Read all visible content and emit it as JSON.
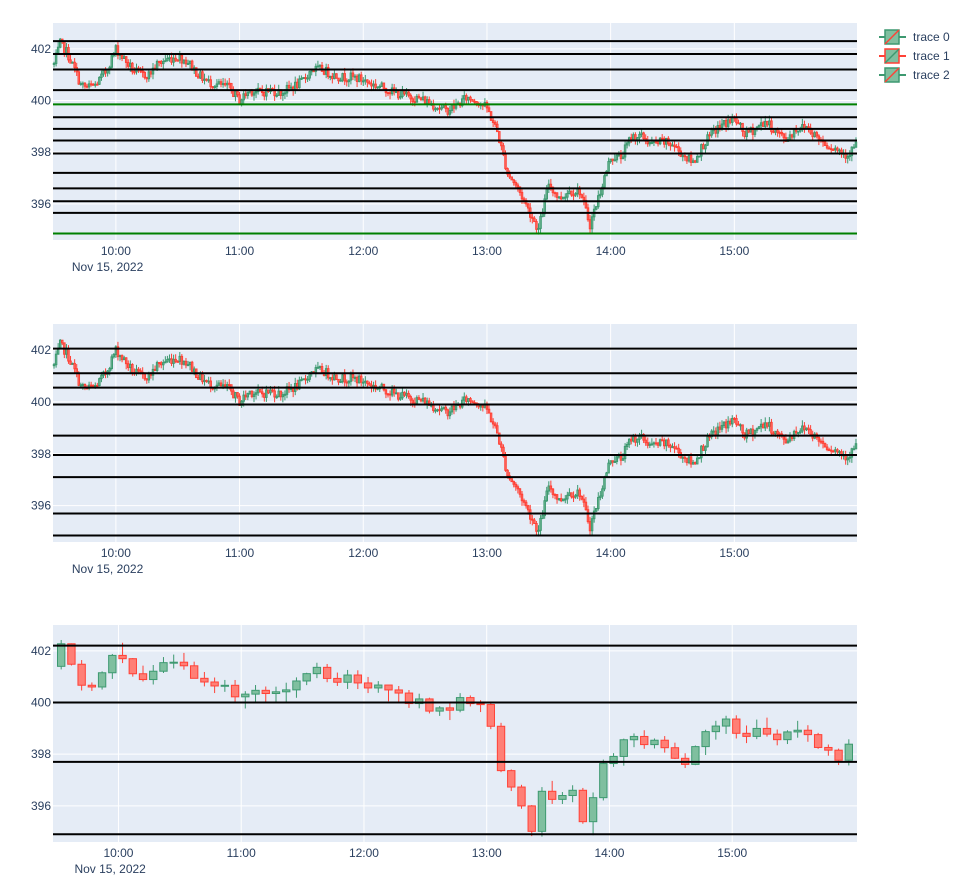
{
  "colors": {
    "plot_bg": "#e5ecf6",
    "grid": "#ffffff",
    "increasing": "#3d9970",
    "increasing_fill": "#7fbf9f",
    "decreasing": "#ff4136",
    "decreasing_fill": "#ff7f76",
    "hline": "#000000",
    "hline_green": "#008000",
    "axis_text": "#2a3f5f"
  },
  "legend": {
    "position": "top-right",
    "items": [
      "trace 0",
      "trace 1",
      "trace 2"
    ],
    "marker_colors": [
      {
        "inc": "#3d9970",
        "dec": "#ff4136"
      },
      {
        "inc": "#ff4136",
        "dec": "#3d9970"
      },
      {
        "inc": "#3d9970",
        "dec": "#ff4136"
      }
    ]
  },
  "chart_data": [
    {
      "type": "candlestick",
      "name": "trace 0",
      "x_range": [
        "09:30",
        "15:59"
      ],
      "ylim": [
        394.6,
        403.0
      ],
      "x_ticks": [
        "10:00",
        "11:00",
        "12:00",
        "13:00",
        "14:00",
        "15:00"
      ],
      "x_tick_sublabel": "Nov 15, 2022",
      "y_ticks": [
        396,
        398,
        400,
        402
      ],
      "candle_interval_minutes": 1,
      "price_path": {
        "times": [
          "09:30",
          "09:33",
          "09:36",
          "09:40",
          "09:43",
          "09:46",
          "09:50",
          "09:55",
          "10:00",
          "10:04",
          "10:08",
          "10:12",
          "10:16",
          "10:20",
          "10:25",
          "10:30",
          "10:35",
          "10:40",
          "10:45",
          "10:50",
          "10:55",
          "11:00",
          "11:05",
          "11:10",
          "11:15",
          "11:20",
          "11:25",
          "11:30",
          "11:35",
          "11:40",
          "11:45",
          "11:50",
          "11:55",
          "12:00",
          "12:05",
          "12:10",
          "12:15",
          "12:20",
          "12:25",
          "12:30",
          "12:35",
          "12:40",
          "12:45",
          "12:50",
          "12:55",
          "13:00",
          "13:05",
          "13:10",
          "13:15",
          "13:20",
          "13:25",
          "13:30",
          "13:35",
          "13:40",
          "13:45",
          "13:50",
          "13:55",
          "14:00",
          "14:05",
          "14:10",
          "14:15",
          "14:20",
          "14:25",
          "14:30",
          "14:35",
          "14:40",
          "14:45",
          "14:50",
          "14:55",
          "15:00",
          "15:05",
          "15:10",
          "15:15",
          "15:20",
          "15:25",
          "15:30",
          "15:35",
          "15:40",
          "15:45",
          "15:50",
          "15:55",
          "15:59"
        ],
        "prices": [
          401.4,
          402.2,
          401.9,
          401.2,
          400.6,
          400.5,
          400.6,
          401.1,
          402.0,
          401.6,
          401.2,
          401.0,
          401.0,
          401.4,
          401.6,
          401.7,
          401.5,
          401.0,
          400.7,
          400.6,
          400.5,
          400.0,
          400.4,
          400.3,
          400.4,
          400.3,
          400.5,
          400.7,
          401.2,
          401.2,
          401.0,
          400.9,
          400.9,
          400.8,
          400.6,
          400.5,
          400.3,
          400.2,
          400.1,
          400.0,
          399.8,
          399.6,
          399.8,
          400.1,
          400.0,
          399.7,
          398.8,
          397.2,
          396.6,
          395.8,
          395.0,
          396.8,
          396.2,
          396.5,
          396.5,
          395.2,
          396.5,
          397.8,
          397.8,
          398.6,
          398.6,
          398.3,
          398.4,
          398.3,
          397.9,
          397.6,
          398.3,
          398.8,
          399.1,
          399.3,
          398.7,
          398.9,
          399.2,
          398.8,
          398.5,
          398.9,
          399.0,
          398.6,
          398.3,
          398.1,
          397.9,
          398.3
        ]
      },
      "hlines": [
        {
          "y": 402.3,
          "color": "black"
        },
        {
          "y": 401.8,
          "color": "black"
        },
        {
          "y": 401.2,
          "color": "black"
        },
        {
          "y": 400.4,
          "color": "black"
        },
        {
          "y": 399.85,
          "color": "green"
        },
        {
          "y": 399.35,
          "color": "black"
        },
        {
          "y": 398.9,
          "color": "black"
        },
        {
          "y": 398.45,
          "color": "black"
        },
        {
          "y": 397.95,
          "color": "black"
        },
        {
          "y": 397.2,
          "color": "black"
        },
        {
          "y": 396.6,
          "color": "black"
        },
        {
          "y": 396.1,
          "color": "black"
        },
        {
          "y": 395.65,
          "color": "black"
        },
        {
          "y": 394.85,
          "color": "green"
        }
      ],
      "grid": true
    },
    {
      "type": "candlestick",
      "name": "trace 1",
      "x_range": [
        "09:30",
        "15:59"
      ],
      "ylim": [
        394.6,
        403.0
      ],
      "x_ticks": [
        "10:00",
        "11:00",
        "12:00",
        "13:00",
        "14:00",
        "15:00"
      ],
      "x_tick_sublabel": "Nov 15, 2022",
      "y_ticks": [
        396,
        398,
        400,
        402
      ],
      "candle_interval_minutes": 1,
      "hlines": [
        {
          "y": 402.05,
          "color": "black"
        },
        {
          "y": 401.1,
          "color": "black"
        },
        {
          "y": 400.55,
          "color": "black"
        },
        {
          "y": 399.9,
          "color": "black"
        },
        {
          "y": 398.7,
          "color": "black"
        },
        {
          "y": 397.95,
          "color": "black"
        },
        {
          "y": 397.1,
          "color": "black"
        },
        {
          "y": 395.7,
          "color": "black"
        },
        {
          "y": 394.85,
          "color": "black"
        }
      ],
      "grid": true
    },
    {
      "type": "candlestick",
      "name": "trace 2",
      "x_range": [
        "09:30",
        "15:59"
      ],
      "ylim": [
        394.6,
        403.0
      ],
      "x_ticks": [
        "10:00",
        "11:00",
        "12:00",
        "13:00",
        "14:00",
        "15:00"
      ],
      "x_tick_sublabel": "Nov 15, 2022",
      "y_ticks": [
        396,
        398,
        400,
        402
      ],
      "candle_interval_minutes": 5,
      "hlines": [
        {
          "y": 402.2,
          "color": "black"
        },
        {
          "y": 400.0,
          "color": "black"
        },
        {
          "y": 397.7,
          "color": "black"
        },
        {
          "y": 394.9,
          "color": "black"
        }
      ],
      "grid": true
    }
  ]
}
